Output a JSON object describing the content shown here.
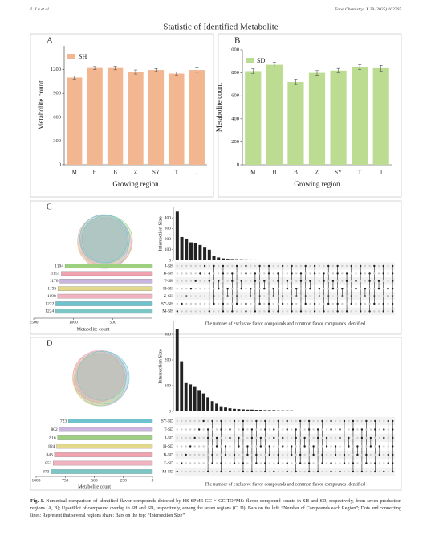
{
  "header": {
    "author": "L. Lu et al.",
    "journal": "Food Chemistry: X 29 (2025) 102765"
  },
  "figure": {
    "title": "Statistic of  Identified Metabolite",
    "panels": [
      {
        "type": "bar",
        "label": "A",
        "legend": "SH",
        "color": "#f2b690",
        "ylabel": "Metabolite count",
        "xlabel": "Growing region",
        "categories": [
          "M",
          "H",
          "B",
          "Z",
          "SY",
          "T",
          "J"
        ],
        "values": [
          1100,
          1220,
          1220,
          1170,
          1195,
          1150,
          1195
        ],
        "errors": [
          20,
          18,
          22,
          25,
          18,
          20,
          28
        ],
        "ylim": [
          0,
          1500
        ],
        "yticks": [
          0,
          300,
          600,
          900,
          1200
        ]
      },
      {
        "type": "bar",
        "label": "B",
        "legend": "SD",
        "color": "#bcdc92",
        "ylabel": "Metabolite count",
        "xlabel": "Growing region",
        "categories": [
          "M",
          "H",
          "B",
          "Z",
          "SY",
          "T",
          "J"
        ],
        "values": [
          815,
          870,
          720,
          800,
          820,
          850,
          840
        ],
        "errors": [
          20,
          22,
          25,
          20,
          18,
          20,
          25
        ],
        "ylim": [
          0,
          1000
        ],
        "yticks": [
          0,
          200,
          400,
          600,
          800,
          1000
        ]
      },
      {
        "type": "upset",
        "label": "C",
        "sets": [
          "J-SH",
          "B-SH",
          "T-SH",
          "H-SH",
          "Z-SH",
          "SY-SH",
          "M-SH"
        ],
        "set_sizes": [
          1104,
          1151,
          1170,
          1195,
          1198,
          1222,
          1224
        ],
        "set_colors": [
          "#9ccf7e",
          "#f0a3ae",
          "#c9b5df",
          "#e3d98c",
          "#f1b3c0",
          "#6fc3cf",
          "#7cc7c6"
        ],
        "set_xlim": [
          1500,
          0
        ],
        "set_xticks": [
          1500,
          1000,
          500
        ],
        "set_xlabel": "Metabolite count",
        "intersection_ylabel": "Intersection Size",
        "intersection_ylim": [
          0,
          500
        ],
        "intersection_yticks": [
          0,
          100,
          200,
          300,
          400
        ],
        "intersections": [
          460,
          220,
          205,
          170,
          160,
          145,
          120,
          100,
          45,
          27,
          18,
          14,
          12,
          11,
          10,
          9,
          8,
          8,
          7,
          7,
          6,
          6,
          6,
          5,
          5,
          5,
          4,
          4,
          4,
          4,
          3,
          3,
          3,
          3,
          3,
          3,
          2,
          2,
          2,
          2,
          2,
          2,
          2,
          1,
          1,
          1,
          1,
          1
        ],
        "note": "The number of exclusive flavor compounds and common flavor compounds identified"
      },
      {
        "type": "upset",
        "label": "D",
        "sets": [
          "SY-SD",
          "T-SD",
          "J-SD",
          "H-SD",
          "B-SD",
          "Z-SD",
          "M-SD"
        ],
        "set_sizes": [
          723,
          802,
          816,
          824,
          843,
          853,
          873
        ],
        "set_colors": [
          "#6fc3cf",
          "#c9b5df",
          "#9ccf7e",
          "#e3d98c",
          "#f0a3ae",
          "#f1b3c0",
          "#7cc7c6"
        ],
        "set_xlim": [
          1000,
          0
        ],
        "set_xticks": [
          1000,
          750,
          500,
          250,
          0
        ],
        "set_xlabel": "Metabolite count",
        "intersection_ylabel": "Intersection Size",
        "intersection_ylim": [
          0,
          350
        ],
        "intersection_yticks": [
          0,
          100,
          200,
          300
        ],
        "intersections": [
          320,
          195,
          110,
          105,
          95,
          80,
          70,
          55,
          40,
          30,
          20,
          15,
          12,
          10,
          9,
          8,
          7,
          7,
          6,
          6,
          5,
          5,
          5,
          4,
          4,
          4,
          4,
          3,
          3,
          3,
          3,
          3,
          3,
          2,
          2,
          2,
          2,
          2,
          2,
          2,
          2,
          1,
          1,
          1,
          1,
          1,
          1,
          1,
          1,
          1
        ],
        "note": "The number of exclusive flavor compounds and common flavor compounds identified"
      }
    ]
  },
  "caption": {
    "label": "Fig. 1.",
    "text": "Numerical comparison of identified flavor compounds detected by HS-SPME-GC × GC-TOFMS: flavor compound counts in SH and SD, respectively, from seven production regions (A, B); UpsetPlot of compound overlap in SH and SD, respectively, among the seven regions (C, D). Bars on the left: “Number of Compounds each Region”; Dots and connecting lines: Represent that several regions share; Bars on the top: “Intersection Size”."
  }
}
